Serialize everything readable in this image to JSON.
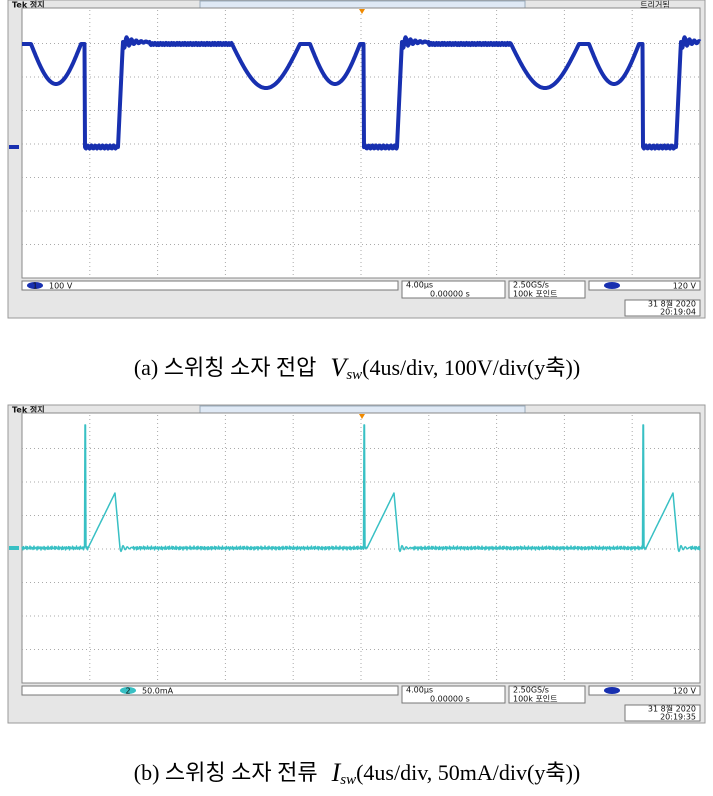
{
  "panels": [
    {
      "status": "Tek 정지",
      "trigger_state": "트리거됨",
      "channel": "1",
      "channel_scale": "100 V",
      "timebase": "4.00µs",
      "position": "0.00000 s",
      "sample_rate": "2.50GS/s",
      "record_length": "100k 포인트",
      "trigger_level": "120 V",
      "date": "31 8월 2020",
      "time": "20:19:04",
      "caption": {
        "label": "(a) 스위칭 소자 전압",
        "symbol": "V",
        "subscript": "sw",
        "detail": "(4us/div, 100V/div(y축))"
      }
    },
    {
      "status": "Tek 정지",
      "channel": "2",
      "channel_scale": "50.0mA",
      "timebase": "4.00µs",
      "position": "0.00000 s",
      "sample_rate": "2.50GS/s",
      "record_length": "100k 포인트",
      "trigger_level": "120 V",
      "date": "31 8월 2020",
      "time": "20:19:35",
      "caption": {
        "label": "(b) 스위칭 소자 전류",
        "symbol": "I",
        "subscript": "sw",
        "detail": "(4us/div, 50mA/div(y축))"
      }
    }
  ]
}
